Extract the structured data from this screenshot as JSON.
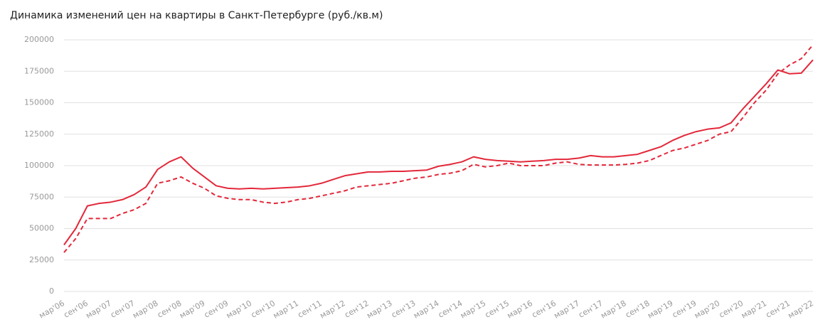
{
  "chart_data": {
    "type": "line",
    "title": "Динамика изменений цен на квартиры в Санкт-Петербурге (руб./кв.м)",
    "categories": [
      "мар'06",
      null,
      "сен'06",
      null,
      "мар'07",
      null,
      "сен'07",
      null,
      "мар'08",
      null,
      "сен'08",
      null,
      "мар'09",
      null,
      "сен'09",
      null,
      "мар'10",
      null,
      "сен'10",
      null,
      "мар'11",
      null,
      "сен'11",
      null,
      "мар'12",
      null,
      "сен'12",
      null,
      "мар'13",
      null,
      "сен'13",
      null,
      "мар'14",
      null,
      "сен'14",
      null,
      "мар'15",
      null,
      "сен'15",
      null,
      "мар'16",
      null,
      "сен'16",
      null,
      "мар'17",
      null,
      "сен'17",
      null,
      "мар'18",
      null,
      "сен'18",
      null,
      "мар'19",
      null,
      "сен'19",
      null,
      "мар'20",
      null,
      "сен'20",
      null,
      "мар'21",
      null,
      "сен'21",
      null,
      "мар'22"
    ],
    "series": [
      {
        "color": "#e3283a",
        "dashed": false,
        "values": [
          37000,
          50000,
          68000,
          70000,
          71000,
          73000,
          77000,
          83000,
          97000,
          103000,
          107000,
          98000,
          91000,
          84000,
          82000,
          81500,
          82000,
          81500,
          82000,
          82500,
          83000,
          84000,
          86000,
          89000,
          92000,
          93500,
          95000,
          95000,
          95500,
          95500,
          96000,
          96500,
          99500,
          101000,
          103000,
          107000,
          105000,
          104000,
          103500,
          103000,
          103500,
          104000,
          105000,
          105000,
          106000,
          108000,
          107000,
          107000,
          108000,
          109000,
          112000,
          115000,
          120000,
          124000,
          127000,
          129000,
          130000,
          134000,
          145000,
          155000,
          165000,
          176000,
          173000,
          173500,
          184000
        ]
      },
      {
        "color": "#e3283a",
        "dashed": true,
        "values": [
          31000,
          42000,
          58000,
          58000,
          58000,
          62000,
          65000,
          70000,
          86000,
          88000,
          91000,
          86000,
          82000,
          76000,
          74000,
          73000,
          73000,
          71000,
          70000,
          71000,
          73000,
          74000,
          76000,
          78000,
          80000,
          83000,
          84000,
          85000,
          86000,
          88000,
          90000,
          91000,
          93000,
          94000,
          96000,
          101000,
          99000,
          100000,
          102000,
          100000,
          100000,
          100000,
          102000,
          103000,
          101000,
          100500,
          100500,
          100500,
          101000,
          102000,
          104000,
          108000,
          112000,
          114000,
          117000,
          120000,
          125000,
          127000,
          138000,
          150000,
          160000,
          173000,
          180000,
          185000,
          196000
        ]
      }
    ],
    "ylim": [
      0,
      200000
    ],
    "yticks": [
      0,
      25000,
      50000,
      75000,
      100000,
      125000,
      150000,
      175000,
      200000
    ],
    "grid": true
  }
}
